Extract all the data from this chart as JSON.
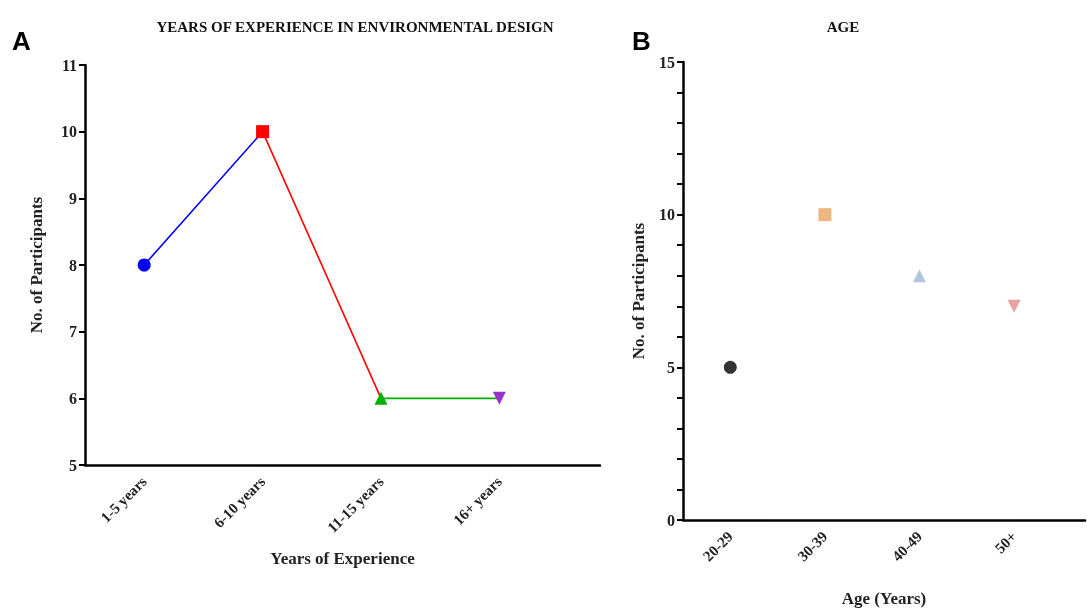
{
  "chart_data": [
    {
      "type": "line",
      "title": "YEARS OF EXPERIENCE IN ENVIRONMENTAL DESIGN",
      "xlabel": "Years of Experience",
      "ylabel": "No. of Participants",
      "annotations": [
        "A"
      ],
      "categories": [
        "1-5 years",
        "6-10 years",
        "11-15 years",
        "16+ years"
      ],
      "series": [
        {
          "values": [
            8,
            10,
            6,
            6
          ],
          "colors": [
            "#0000ff",
            "#ff0000",
            "#00b000",
            "#9933cc"
          ]
        }
      ],
      "marker": [
        "circle",
        "square",
        "triangle",
        "triangle_down"
      ],
      "ylim": [
        5,
        11
      ],
      "yticks": [
        5,
        6,
        7,
        8,
        9,
        10,
        11
      ]
    },
    {
      "type": "scatter",
      "title": "AGE",
      "xlabel": "Age (Years)",
      "ylabel": "No. of Participants",
      "annotations": [
        "B"
      ],
      "categories": [
        "20-29",
        "30-39",
        "40-49",
        "50+"
      ],
      "series": [
        {
          "values": [
            5,
            10,
            8,
            7
          ],
          "colors": [
            "#000000",
            "#e8a460",
            "#9fb5d6",
            "#e58a8a"
          ]
        }
      ],
      "marker": [
        "circle",
        "square",
        "triangle",
        "triangle_down"
      ],
      "ylim": [
        0,
        15
      ],
      "yticks": [
        0,
        {
          "value": 1,
          "label": null
        },
        {
          "value": 2,
          "label": null
        },
        {
          "value": 3,
          "label": null
        },
        {
          "value": 4,
          "label": null
        },
        5,
        {
          "value": 6,
          "label": null
        },
        {
          "value": 7,
          "label": null
        },
        {
          "value": 8,
          "label": null
        },
        {
          "value": 9,
          "label": null
        },
        10,
        {
          "value": 11,
          "label": null
        },
        {
          "value": 12,
          "label": null
        },
        {
          "value": 13,
          "label": null
        },
        {
          "value": 14,
          "label": null
        },
        15
      ]
    }
  ]
}
